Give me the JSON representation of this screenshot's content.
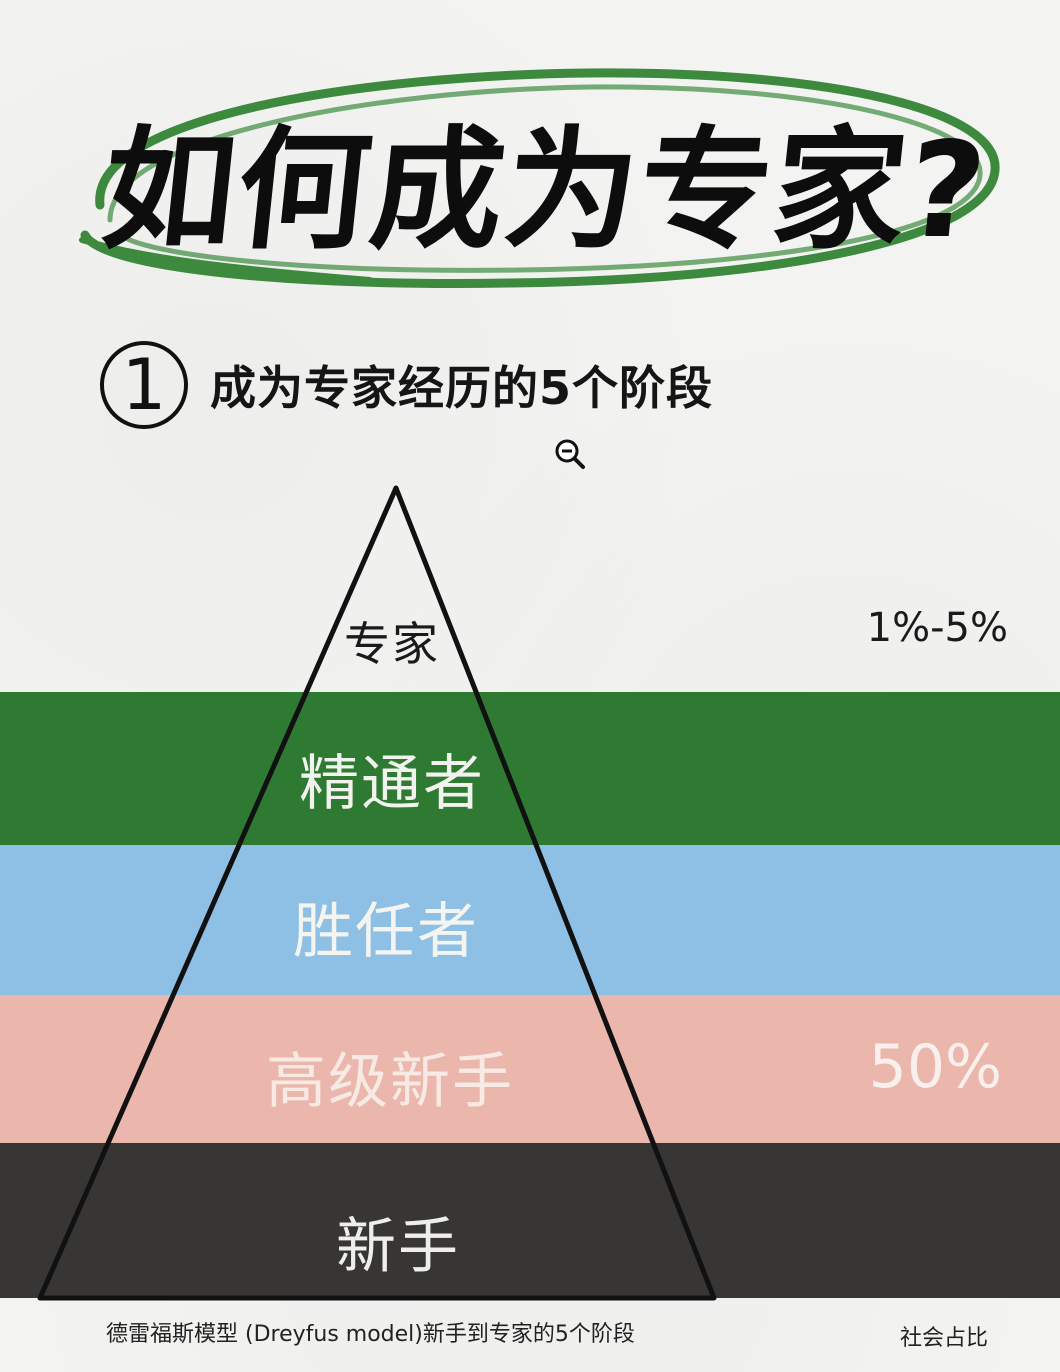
{
  "title": "如何成为专家?",
  "section": {
    "number": "1",
    "title": "成为专家经历的5个阶段"
  },
  "icons": {
    "zoom": "zoom-out-icon"
  },
  "colors": {
    "green": "#2f7a33",
    "blue": "#8ec0e6",
    "pink": "#ebb7ac",
    "dark": "#373634",
    "title_ring": "#3d8a3e"
  },
  "pyramid": {
    "levels": [
      {
        "label": "专家"
      },
      {
        "label": "精通者"
      },
      {
        "label": "胜任者"
      },
      {
        "label": "高级新手"
      },
      {
        "label": "新手"
      }
    ]
  },
  "percentages": {
    "top": "1%-5%",
    "middle": "50%"
  },
  "caption": "德雷福斯模型 (Dreyfus model)新手到专家的5个阶段",
  "caption_right": "社会占比"
}
